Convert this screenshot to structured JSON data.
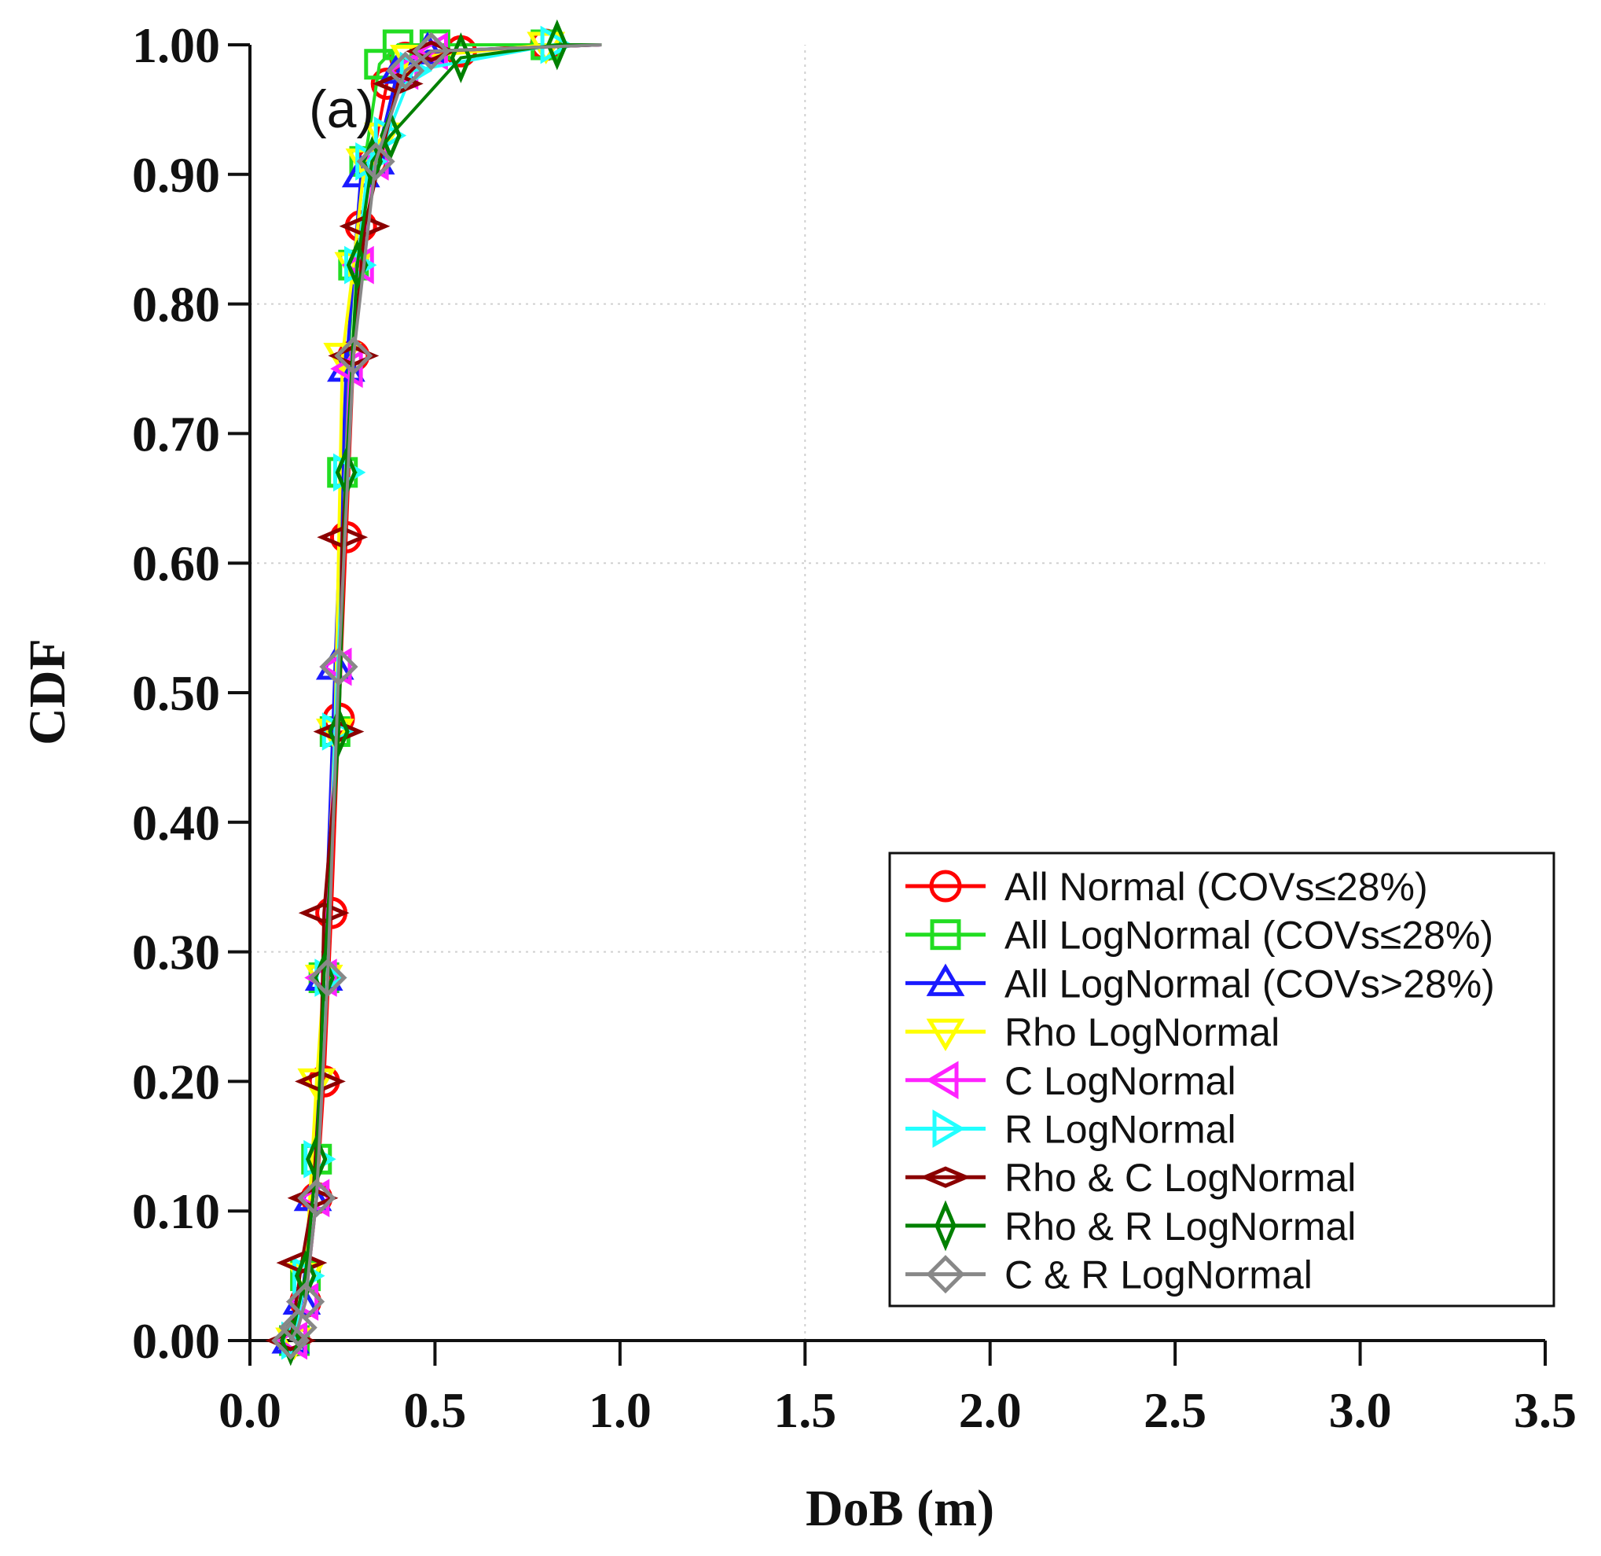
{
  "chart_data": {
    "type": "line",
    "title": "",
    "annotation": "(a)",
    "xlabel": "DoB (m)",
    "ylabel": "CDF",
    "xlim": [
      0,
      3.5
    ],
    "ylim": [
      0,
      1.0
    ],
    "x_ticks": [
      0.0,
      0.5,
      1.0,
      1.5,
      2.0,
      2.5,
      3.0,
      3.5
    ],
    "x_tick_labels": [
      "0.0",
      "0.5",
      "1.0",
      "1.5",
      "2.0",
      "2.5",
      "3.0",
      "3.5"
    ],
    "y_ticks": [
      0.0,
      0.1,
      0.2,
      0.3,
      0.4,
      0.5,
      0.6,
      0.7,
      0.8,
      0.9,
      1.0
    ],
    "y_tick_labels": [
      "0.00",
      "0.10",
      "0.20",
      "0.30",
      "0.40",
      "0.50",
      "0.60",
      "0.70",
      "0.80",
      "0.90",
      "1.00"
    ],
    "grid": true,
    "legend_position": "bottom-right",
    "series": [
      {
        "name": "All Normal (COVs≤28%)",
        "color": "#ff0000",
        "marker": "circle",
        "x": [
          0.12,
          0.15,
          0.18,
          0.2,
          0.22,
          0.24,
          0.26,
          0.28,
          0.3,
          0.33,
          0.37,
          0.42,
          0.57,
          0.8,
          0.95
        ],
        "y": [
          0.0,
          0.03,
          0.11,
          0.2,
          0.33,
          0.48,
          0.62,
          0.76,
          0.86,
          0.91,
          0.97,
          0.99,
          0.995,
          1.0,
          1.0
        ]
      },
      {
        "name": "All LogNormal (COVs≤28%)",
        "color": "#22dd22",
        "marker": "square",
        "x": [
          0.12,
          0.15,
          0.18,
          0.2,
          0.23,
          0.25,
          0.28,
          0.31,
          0.35,
          0.4,
          0.5,
          0.8,
          0.95
        ],
        "y": [
          0.0,
          0.05,
          0.14,
          0.28,
          0.47,
          0.67,
          0.83,
          0.91,
          0.985,
          1.0,
          1.0,
          1.0,
          1.0
        ]
      },
      {
        "name": "All LogNormal (COVs>28%)",
        "color": "#1a1aff",
        "marker": "triangle-up",
        "x": [
          0.11,
          0.14,
          0.17,
          0.2,
          0.23,
          0.26,
          0.3,
          0.34,
          0.4,
          0.48,
          0.95
        ],
        "y": [
          0.0,
          0.03,
          0.11,
          0.28,
          0.52,
          0.75,
          0.9,
          0.91,
          0.98,
          0.995,
          1.0
        ]
      },
      {
        "name": "Rho LogNormal",
        "color": "#ffff00",
        "marker": "triangle-down",
        "x": [
          0.12,
          0.15,
          0.18,
          0.2,
          0.23,
          0.25,
          0.28,
          0.31,
          0.36,
          0.43,
          0.8,
          0.95
        ],
        "y": [
          0.0,
          0.05,
          0.2,
          0.28,
          0.47,
          0.76,
          0.83,
          0.91,
          0.93,
          0.99,
          1.0,
          1.0
        ]
      },
      {
        "name": "C LogNormal",
        "color": "#ff22ff",
        "marker": "triangle-left",
        "x": [
          0.12,
          0.15,
          0.18,
          0.2,
          0.24,
          0.27,
          0.3,
          0.34,
          0.42,
          0.5,
          0.95
        ],
        "y": [
          0.0,
          0.03,
          0.11,
          0.28,
          0.52,
          0.75,
          0.83,
          0.91,
          0.98,
          0.995,
          1.0
        ]
      },
      {
        "name": "R LogNormal",
        "color": "#22ffff",
        "marker": "triangle-right",
        "x": [
          0.12,
          0.15,
          0.18,
          0.21,
          0.23,
          0.26,
          0.29,
          0.32,
          0.37,
          0.44,
          0.82,
          0.95
        ],
        "y": [
          0.0,
          0.05,
          0.14,
          0.28,
          0.47,
          0.67,
          0.83,
          0.91,
          0.93,
          0.98,
          1.0,
          1.0
        ]
      },
      {
        "name": "Rho & C LogNormal",
        "color": "#8b0000",
        "marker": "diamond-thin",
        "x": [
          0.11,
          0.14,
          0.17,
          0.19,
          0.2,
          0.24,
          0.25,
          0.28,
          0.31,
          0.4,
          0.49,
          0.95
        ],
        "y": [
          0.0,
          0.06,
          0.11,
          0.2,
          0.33,
          0.47,
          0.62,
          0.76,
          0.86,
          0.97,
          0.995,
          1.0
        ]
      },
      {
        "name": "Rho & R LogNormal",
        "color": "#008000",
        "marker": "diamond-tall",
        "x": [
          0.11,
          0.15,
          0.18,
          0.2,
          0.24,
          0.26,
          0.29,
          0.33,
          0.38,
          0.57,
          0.83,
          0.95
        ],
        "y": [
          0.0,
          0.05,
          0.14,
          0.28,
          0.47,
          0.67,
          0.83,
          0.91,
          0.93,
          0.99,
          1.0,
          1.0
        ]
      },
      {
        "name": "C & R LogNormal",
        "color": "#888888",
        "marker": "diamond",
        "x": [
          0.11,
          0.13,
          0.15,
          0.18,
          0.21,
          0.24,
          0.28,
          0.34,
          0.42,
          0.49,
          0.95
        ],
        "y": [
          0.0,
          0.01,
          0.03,
          0.11,
          0.28,
          0.52,
          0.76,
          0.91,
          0.98,
          0.995,
          1.0
        ]
      }
    ]
  }
}
